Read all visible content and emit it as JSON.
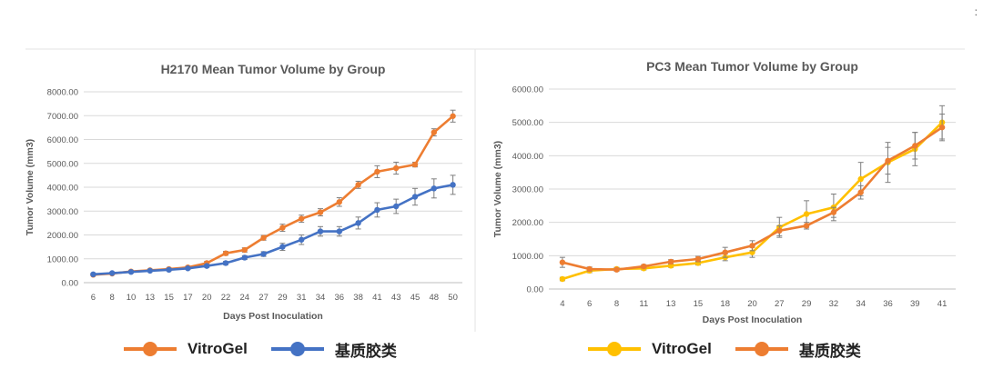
{
  "chart_data": [
    {
      "type": "line",
      "title": "H2170 Mean Tumor Volume by Group",
      "xlabel": "Days Post Inoculation",
      "ylabel": "Tumor Volume (mm3)",
      "ylim": [
        0,
        8000
      ],
      "yticks": [
        "0.00",
        "1000.00",
        "2000.00",
        "3000.00",
        "4000.00",
        "5000.00",
        "6000.00",
        "7000.00",
        "8000.00"
      ],
      "categories": [
        "6",
        "8",
        "10",
        "13",
        "15",
        "17",
        "20",
        "22",
        "24",
        "27",
        "29",
        "31",
        "34",
        "36",
        "38",
        "41",
        "43",
        "45",
        "48",
        "50"
      ],
      "grid": "horizontal",
      "series": [
        {
          "name": "VitroGel",
          "color": "#ED7D31",
          "values": [
            330,
            380,
            470,
            520,
            570,
            640,
            820,
            1230,
            1370,
            1880,
            2300,
            2680,
            2950,
            3380,
            4100,
            4650,
            4800,
            4950,
            6300,
            6980
          ],
          "errors": [
            30,
            30,
            40,
            40,
            50,
            50,
            70,
            80,
            90,
            100,
            150,
            150,
            150,
            180,
            150,
            250,
            250,
            100,
            150,
            250
          ]
        },
        {
          "name": "基质胶类",
          "color": "#4472C4",
          "values": [
            350,
            400,
            450,
            500,
            540,
            600,
            700,
            820,
            1050,
            1200,
            1500,
            1800,
            2150,
            2150,
            2500,
            3050,
            3200,
            3600,
            3950,
            4100
          ],
          "errors": [
            40,
            40,
            40,
            40,
            50,
            50,
            60,
            70,
            80,
            100,
            150,
            200,
            200,
            200,
            250,
            300,
            300,
            350,
            400,
            400
          ]
        }
      ]
    },
    {
      "type": "line",
      "title": "PC3 Mean Tumor Volume by Group",
      "xlabel": "Days Post Inoculation",
      "ylabel": "Tumor Volume (mm3)",
      "ylim": [
        0,
        6000
      ],
      "yticks": [
        "0.00",
        "1000.00",
        "2000.00",
        "3000.00",
        "4000.00",
        "5000.00",
        "6000.00"
      ],
      "categories": [
        "4",
        "6",
        "8",
        "11",
        "13",
        "15",
        "18",
        "20",
        "27",
        "29",
        "32",
        "34",
        "36",
        "39",
        "41"
      ],
      "grid": "horizontal",
      "series": [
        {
          "name": "VitroGel",
          "color": "#FFC000",
          "values": [
            300,
            550,
            600,
            620,
            700,
            780,
            950,
            1100,
            1850,
            2250,
            2450,
            3300,
            3800,
            4200,
            5000
          ],
          "errors": [
            50,
            60,
            50,
            50,
            50,
            60,
            100,
            150,
            300,
            400,
            400,
            500,
            600,
            500,
            500
          ]
        },
        {
          "name": "基质胶类",
          "color": "#ED7D31",
          "values": [
            800,
            600,
            580,
            680,
            820,
            900,
            1100,
            1300,
            1750,
            1900,
            2300,
            2900,
            3850,
            4300,
            4850
          ],
          "errors": [
            150,
            60,
            50,
            50,
            60,
            80,
            150,
            150,
            150,
            100,
            150,
            200,
            400,
            400,
            400
          ]
        }
      ]
    }
  ],
  "legends": [
    {
      "items": [
        {
          "label": "VitroGel",
          "color": "#ED7D31"
        },
        {
          "label": "基质胶类",
          "color": "#4472C4"
        }
      ]
    },
    {
      "items": [
        {
          "label": "VitroGel",
          "color": "#FFC000"
        },
        {
          "label": "基质胶类",
          "color": "#ED7D31"
        }
      ]
    }
  ],
  "corner_mark": ":"
}
